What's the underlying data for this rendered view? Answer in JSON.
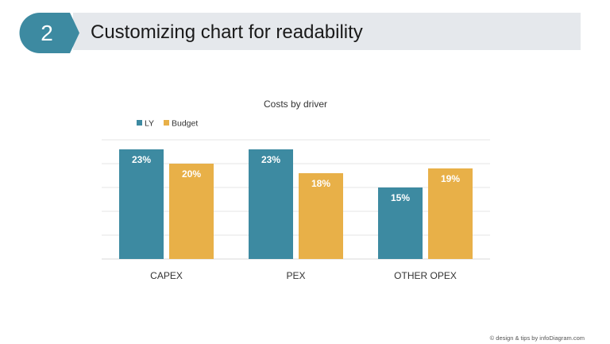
{
  "slide": {
    "number": "2",
    "title": "Customizing chart for readability",
    "footer": "© design & tips by infoDiagram.com"
  },
  "colors": {
    "badge": "#3d8aa1",
    "title_bar": "#e5e8ec",
    "ly": "#3d8aa1",
    "budget": "#e8b048",
    "gridline": "#e6e6e6",
    "bar_label": "#ffffff"
  },
  "chart_data": {
    "type": "bar",
    "title": "Costs by driver",
    "categories": [
      "CAPEX",
      "PEX",
      "OTHER OPEX"
    ],
    "series": [
      {
        "name": "LY",
        "values": [
          23,
          23,
          15
        ],
        "labels": [
          "23%",
          "23%",
          "15%"
        ]
      },
      {
        "name": "Budget",
        "values": [
          20,
          18,
          19
        ],
        "labels": [
          "20%",
          "18%",
          "19%"
        ]
      }
    ],
    "ylim": [
      0,
      25
    ],
    "unit": "%",
    "grid": true,
    "legend": "top-left",
    "xlabel": "",
    "ylabel": ""
  }
}
